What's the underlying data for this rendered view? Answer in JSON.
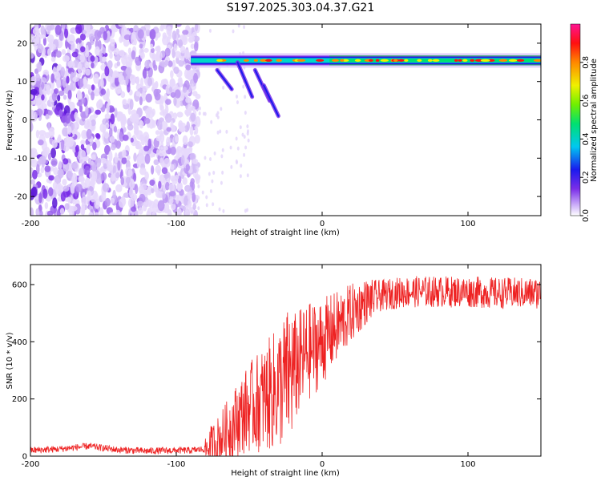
{
  "figure": {
    "title": "S197.2025.303.04.37.G21"
  },
  "chart_data": [
    {
      "type": "heatmap",
      "title": "S197.2025.303.04.37.G21",
      "xlabel": "Height of straight line (km)",
      "ylabel": "Frequency (Hz)",
      "xlim": [
        -200,
        150
      ],
      "ylim": [
        -25,
        25
      ],
      "xticks": [
        -200,
        -100,
        0,
        100
      ],
      "yticks": [
        -20,
        -10,
        0,
        10,
        20
      ],
      "colorbar": {
        "label": "Normalized spectral amplitude",
        "range": [
          0,
          1
        ],
        "ticks": [
          0.0,
          0.2,
          0.4,
          0.6,
          0.8
        ]
      },
      "features": {
        "ridge_frequency_hz": 15.5,
        "ridge_start_height_km": -90,
        "noise_region_height_km": [
          -200,
          -85
        ]
      }
    },
    {
      "type": "line",
      "xlabel": "Height of straight line (km)",
      "ylabel": "SNR (10 * v/v)",
      "xlim": [
        -200,
        150
      ],
      "ylim": [
        0,
        670
      ],
      "xticks": [
        -200,
        -100,
        0,
        100
      ],
      "yticks": [
        0,
        200,
        400,
        600
      ],
      "series": [
        {
          "name": "SNR",
          "color": "#ee2222",
          "x": [
            -200,
            -180,
            -160,
            -140,
            -120,
            -100,
            -90,
            -80,
            -75,
            -70,
            -60,
            -50,
            -40,
            -30,
            -20,
            -10,
            -5,
            0,
            10,
            20,
            30,
            40,
            50,
            60,
            80,
            100,
            120,
            140,
            150
          ],
          "y": [
            20,
            25,
            35,
            22,
            18,
            20,
            20,
            25,
            40,
            60,
            120,
            170,
            200,
            240,
            300,
            360,
            380,
            400,
            450,
            500,
            540,
            560,
            570,
            575,
            575,
            575,
            570,
            570,
            570
          ]
        }
      ]
    }
  ]
}
